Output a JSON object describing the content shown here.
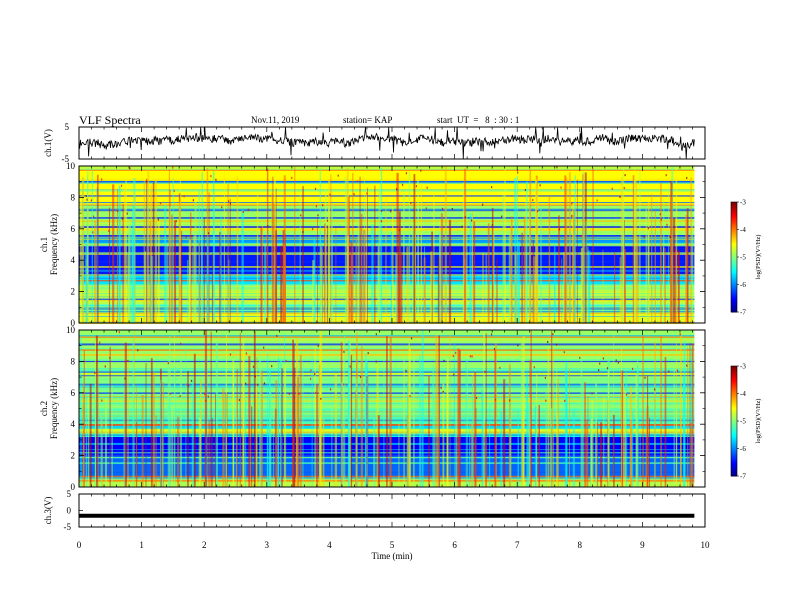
{
  "header": {
    "title": "VLF Spectra",
    "date": "Nov.11, 2019",
    "station": "station= KAP",
    "start": "start  UT  =   8  : 30 : 1"
  },
  "chart_data": [
    {
      "type": "line",
      "panel": "ch1-waveform",
      "ylabel": "ch.1(V)",
      "ylim": [
        -5,
        5
      ],
      "y_ticks": [
        "5",
        "-5"
      ],
      "xlim": [
        0,
        10
      ],
      "description_values": {
        "mean_level": 0.5,
        "noise_amplitude": 2.5
      },
      "line_color": "#000000"
    },
    {
      "type": "heatmap",
      "panel": "ch1-spectrogram",
      "ylabel": "ch.1\nFrequency  (kHz)",
      "ylabel_lines": [
        "ch.1",
        "Frequency  (kHz)"
      ],
      "ylim": [
        0,
        10
      ],
      "y_ticks": [
        "0",
        "2",
        "4",
        "6",
        "8",
        "10"
      ],
      "xlim": [
        0,
        10
      ],
      "colorbar": {
        "label": "log(PSD)(V²/Hz)",
        "range": [
          -7,
          -3
        ],
        "ticks": [
          "-3",
          "-4",
          "-5",
          "-6",
          "-7"
        ]
      },
      "band_levels_log_psd": [
        {
          "f": [
            0,
            0.6
          ],
          "v": -4.6
        },
        {
          "f": [
            0.6,
            1.2
          ],
          "v": -5.1
        },
        {
          "f": [
            1.2,
            2.4
          ],
          "v": -4.8
        },
        {
          "f": [
            2.4,
            3.0
          ],
          "v": -5.6
        },
        {
          "f": [
            3.0,
            4.9
          ],
          "v": -6.4
        },
        {
          "f": [
            4.9,
            5.6
          ],
          "v": -5.9
        },
        {
          "f": [
            5.6,
            7.5
          ],
          "v": -4.9
        },
        {
          "f": [
            7.5,
            10
          ],
          "v": -4.5
        }
      ]
    },
    {
      "type": "heatmap",
      "panel": "ch2-spectrogram",
      "ylabel": "ch.2\nFrequency  (kHz)",
      "ylabel_lines": [
        "ch.2",
        "Frequency  (kHz)"
      ],
      "ylim": [
        0,
        10
      ],
      "y_ticks": [
        "0",
        "2",
        "4",
        "6",
        "8",
        "10"
      ],
      "xlim": [
        0,
        10
      ],
      "colorbar": {
        "label": "log(PSD)(V²/Hz)",
        "range": [
          -7,
          -3
        ],
        "ticks": [
          "-3",
          "-4",
          "-5",
          "-6",
          "-7"
        ]
      },
      "band_levels_log_psd": [
        {
          "f": [
            0,
            0.5
          ],
          "v": -4.8
        },
        {
          "f": [
            0.5,
            2.0
          ],
          "v": -6.1
        },
        {
          "f": [
            2.0,
            3.2
          ],
          "v": -6.5
        },
        {
          "f": [
            3.2,
            5.0
          ],
          "v": -5.2
        },
        {
          "f": [
            5.0,
            7.0
          ],
          "v": -5.0
        },
        {
          "f": [
            7.0,
            10
          ],
          "v": -4.9
        }
      ]
    },
    {
      "type": "line",
      "panel": "ch3-waveform",
      "ylabel": "ch.3(V)",
      "ylim": [
        -5,
        5
      ],
      "y_ticks": [
        "5",
        "0",
        "-5"
      ],
      "xlim": [
        0,
        10
      ],
      "x": [
        0,
        9.83
      ],
      "y": [
        -1.6,
        -1.6
      ],
      "line_color": "#000000"
    }
  ],
  "x_axis": {
    "label": "Time  (min)",
    "ticks": [
      "0",
      "1",
      "2",
      "3",
      "4",
      "5",
      "6",
      "7",
      "8",
      "9",
      "10"
    ],
    "data_end_min": 9.83
  }
}
